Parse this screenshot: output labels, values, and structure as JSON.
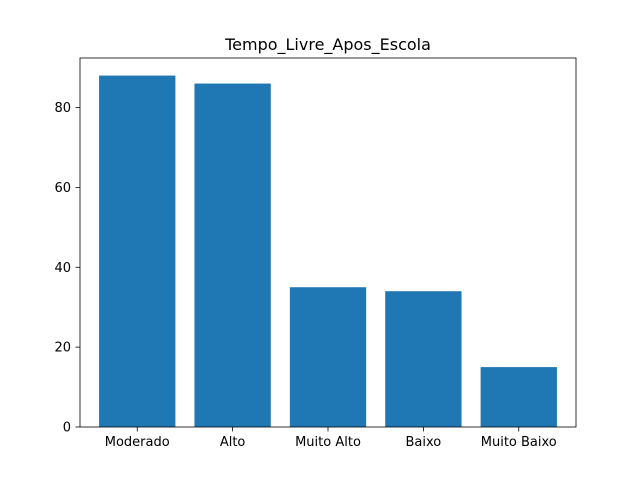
{
  "chart_data": {
    "type": "bar",
    "title": "Tempo_Livre_Apos_Escola",
    "xlabel": "",
    "ylabel": "",
    "categories": [
      "Moderado",
      "Alto",
      "Muito Alto",
      "Baixo",
      "Muito Baixo"
    ],
    "values": [
      88,
      86,
      35,
      34,
      15
    ],
    "ylim": [
      0,
      92.4
    ],
    "yticks": [
      0,
      20,
      40,
      60,
      80
    ],
    "grid": false,
    "legend": "none",
    "bar_color": "#1f77b4"
  }
}
